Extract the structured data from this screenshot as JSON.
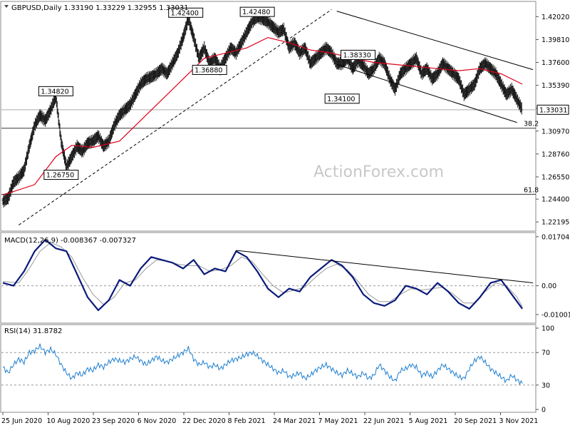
{
  "chart_data": {
    "type": "line",
    "watermark": "ActionForex.com",
    "x_labels": [
      "25 Jun 2020",
      "10 Aug 2020",
      "23 Sep 2020",
      "6 Nov 2020",
      "22 Dec 2020",
      "8 Feb 2021",
      "24 Mar 2021",
      "7 May 2021",
      "22 Jun 2021",
      "5 Aug 2021",
      "20 Sep 2021",
      "3 Nov 2021"
    ],
    "price_panel": {
      "header": "GBPUSD,Daily  1.33190 1.33229 1.32955 1.33031",
      "ylim": [
        1.2145,
        1.4335
      ],
      "y_ticks": [
        "1.42020",
        "1.39810",
        "1.37600",
        "1.35390",
        "1.33180",
        "1.30970",
        "1.28760",
        "1.26550",
        "1.24400",
        "1.22195"
      ],
      "last_price": "1.33031",
      "last_value": 1.33031,
      "fib_levels": [
        {
          "label": "38.2",
          "value": 1.3125
        },
        {
          "label": "61.8",
          "value": 1.2487
        }
      ],
      "annotations": [
        {
          "text": "1.34820",
          "x": 0.1,
          "y": 1.3482
        },
        {
          "text": "1.26750",
          "x": 0.11,
          "y": 1.2675
        },
        {
          "text": "1.42400",
          "x": 0.345,
          "y": 1.424
        },
        {
          "text": "1.36880",
          "x": 0.39,
          "y": 1.3688
        },
        {
          "text": "1.42480",
          "x": 0.48,
          "y": 1.4248
        },
        {
          "text": "1.38330",
          "x": 0.67,
          "y": 1.3833
        },
        {
          "text": "1.34100",
          "x": 0.64,
          "y": 1.341
        }
      ],
      "close_series": [
        [
          0.0,
          1.242
        ],
        [
          0.01,
          1.245
        ],
        [
          0.02,
          1.26
        ],
        [
          0.03,
          1.265
        ],
        [
          0.04,
          1.272
        ],
        [
          0.05,
          1.295
        ],
        [
          0.06,
          1.315
        ],
        [
          0.07,
          1.325
        ],
        [
          0.08,
          1.32
        ],
        [
          0.09,
          1.33
        ],
        [
          0.1,
          1.343
        ],
        [
          0.11,
          1.3
        ],
        [
          0.12,
          1.275
        ],
        [
          0.13,
          1.285
        ],
        [
          0.14,
          1.295
        ],
        [
          0.15,
          1.29
        ],
        [
          0.16,
          1.298
        ],
        [
          0.17,
          1.3
        ],
        [
          0.18,
          1.305
        ],
        [
          0.19,
          1.295
        ],
        [
          0.2,
          1.3
        ],
        [
          0.21,
          1.315
        ],
        [
          0.22,
          1.325
        ],
        [
          0.23,
          1.33
        ],
        [
          0.24,
          1.335
        ],
        [
          0.25,
          1.345
        ],
        [
          0.26,
          1.355
        ],
        [
          0.27,
          1.36
        ],
        [
          0.28,
          1.362
        ],
        [
          0.29,
          1.365
        ],
        [
          0.3,
          1.37
        ],
        [
          0.31,
          1.365
        ],
        [
          0.32,
          1.375
        ],
        [
          0.33,
          1.385
        ],
        [
          0.34,
          1.4
        ],
        [
          0.35,
          1.418
        ],
        [
          0.36,
          1.4
        ],
        [
          0.37,
          1.38
        ],
        [
          0.38,
          1.39
        ],
        [
          0.39,
          1.375
        ],
        [
          0.4,
          1.38
        ],
        [
          0.41,
          1.37
        ],
        [
          0.42,
          1.38
        ],
        [
          0.43,
          1.39
        ],
        [
          0.44,
          1.385
        ],
        [
          0.45,
          1.395
        ],
        [
          0.46,
          1.405
        ],
        [
          0.47,
          1.415
        ],
        [
          0.48,
          1.42
        ],
        [
          0.49,
          1.418
        ],
        [
          0.5,
          1.415
        ],
        [
          0.51,
          1.41
        ],
        [
          0.52,
          1.405
        ],
        [
          0.53,
          1.408
        ],
        [
          0.54,
          1.39
        ],
        [
          0.55,
          1.395
        ],
        [
          0.56,
          1.385
        ],
        [
          0.57,
          1.39
        ],
        [
          0.58,
          1.375
        ],
        [
          0.59,
          1.38
        ],
        [
          0.6,
          1.385
        ],
        [
          0.61,
          1.39
        ],
        [
          0.62,
          1.385
        ],
        [
          0.63,
          1.375
        ],
        [
          0.64,
          1.375
        ],
        [
          0.65,
          1.38
        ],
        [
          0.66,
          1.37
        ],
        [
          0.67,
          1.378
        ],
        [
          0.68,
          1.373
        ],
        [
          0.69,
          1.365
        ],
        [
          0.7,
          1.37
        ],
        [
          0.71,
          1.38
        ],
        [
          0.72,
          1.375
        ],
        [
          0.73,
          1.36
        ],
        [
          0.74,
          1.35
        ],
        [
          0.75,
          1.365
        ],
        [
          0.76,
          1.37
        ],
        [
          0.77,
          1.375
        ],
        [
          0.78,
          1.38
        ],
        [
          0.79,
          1.365
        ],
        [
          0.8,
          1.37
        ],
        [
          0.81,
          1.36
        ],
        [
          0.82,
          1.365
        ],
        [
          0.83,
          1.375
        ],
        [
          0.84,
          1.37
        ],
        [
          0.85,
          1.365
        ],
        [
          0.86,
          1.36
        ],
        [
          0.87,
          1.345
        ],
        [
          0.88,
          1.35
        ],
        [
          0.89,
          1.355
        ],
        [
          0.9,
          1.37
        ],
        [
          0.91,
          1.375
        ],
        [
          0.92,
          1.37
        ],
        [
          0.93,
          1.365
        ],
        [
          0.94,
          1.355
        ],
        [
          0.95,
          1.345
        ],
        [
          0.96,
          1.35
        ],
        [
          0.97,
          1.34
        ],
        [
          0.98,
          1.3303
        ]
      ],
      "ma_series": [
        [
          0.0,
          1.248
        ],
        [
          0.06,
          1.258
        ],
        [
          0.1,
          1.285
        ],
        [
          0.13,
          1.296
        ],
        [
          0.17,
          1.294
        ],
        [
          0.22,
          1.3
        ],
        [
          0.26,
          1.32
        ],
        [
          0.3,
          1.34
        ],
        [
          0.34,
          1.36
        ],
        [
          0.38,
          1.38
        ],
        [
          0.42,
          1.385
        ],
        [
          0.46,
          1.39
        ],
        [
          0.5,
          1.4
        ],
        [
          0.54,
          1.395
        ],
        [
          0.58,
          1.388
        ],
        [
          0.62,
          1.385
        ],
        [
          0.66,
          1.38
        ],
        [
          0.7,
          1.376
        ],
        [
          0.74,
          1.374
        ],
        [
          0.78,
          1.372
        ],
        [
          0.82,
          1.37
        ],
        [
          0.86,
          1.368
        ],
        [
          0.9,
          1.37
        ],
        [
          0.94,
          1.365
        ],
        [
          0.98,
          1.355
        ]
      ],
      "trendlines": [
        {
          "x1": 0.03,
          "y1": 1.219,
          "x2": 0.62,
          "y2": 1.427,
          "style": "dashed"
        },
        {
          "x1": 0.63,
          "y1": 1.4255,
          "x2": 1.0,
          "y2": 1.369,
          "style": "solid"
        },
        {
          "x1": 0.63,
          "y1": 1.374,
          "x2": 0.97,
          "y2": 1.318,
          "style": "solid"
        }
      ]
    },
    "macd_panel": {
      "label": "MACD(12,26,9) -0.008367 -0.007327",
      "ylim": [
        -0.0125,
        0.018
      ],
      "y_ticks": [
        {
          "text": "0.017047",
          "value": 0.017047
        },
        {
          "text": "0.00",
          "value": 0.0
        },
        {
          "text": "-0.010013",
          "value": -0.010013
        }
      ],
      "zero_line": 0.0,
      "macd_series": [
        [
          0.0,
          0.001
        ],
        [
          0.02,
          0.0
        ],
        [
          0.04,
          0.005
        ],
        [
          0.06,
          0.012
        ],
        [
          0.08,
          0.016
        ],
        [
          0.1,
          0.013
        ],
        [
          0.12,
          0.012
        ],
        [
          0.14,
          0.004
        ],
        [
          0.16,
          -0.004
        ],
        [
          0.18,
          -0.0085
        ],
        [
          0.2,
          -0.005
        ],
        [
          0.22,
          0.002
        ],
        [
          0.24,
          0.0
        ],
        [
          0.26,
          0.006
        ],
        [
          0.28,
          0.01
        ],
        [
          0.3,
          0.009
        ],
        [
          0.32,
          0.008
        ],
        [
          0.34,
          0.006
        ],
        [
          0.36,
          0.009
        ],
        [
          0.38,
          0.004
        ],
        [
          0.4,
          0.006
        ],
        [
          0.42,
          0.005
        ],
        [
          0.44,
          0.012
        ],
        [
          0.46,
          0.01
        ],
        [
          0.48,
          0.005
        ],
        [
          0.5,
          -0.001
        ],
        [
          0.52,
          -0.004
        ],
        [
          0.54,
          -0.001
        ],
        [
          0.56,
          -0.002
        ],
        [
          0.58,
          0.003
        ],
        [
          0.6,
          0.006
        ],
        [
          0.62,
          0.009
        ],
        [
          0.64,
          0.007
        ],
        [
          0.66,
          0.003
        ],
        [
          0.68,
          -0.003
        ],
        [
          0.7,
          -0.006
        ],
        [
          0.72,
          -0.007
        ],
        [
          0.74,
          -0.005
        ],
        [
          0.76,
          0.0
        ],
        [
          0.78,
          -0.001
        ],
        [
          0.8,
          -0.003
        ],
        [
          0.82,
          0.001
        ],
        [
          0.84,
          -0.002
        ],
        [
          0.86,
          -0.006
        ],
        [
          0.88,
          -0.008
        ],
        [
          0.9,
          -0.004
        ],
        [
          0.92,
          0.001
        ],
        [
          0.94,
          0.002
        ],
        [
          0.96,
          -0.003
        ],
        [
          0.98,
          -0.008
        ]
      ],
      "signal_series": [
        [
          0.0,
          0.0015
        ],
        [
          0.03,
          0.001
        ],
        [
          0.05,
          0.006
        ],
        [
          0.07,
          0.012
        ],
        [
          0.09,
          0.015
        ],
        [
          0.11,
          0.0135
        ],
        [
          0.13,
          0.01
        ],
        [
          0.15,
          0.003
        ],
        [
          0.17,
          -0.003
        ],
        [
          0.19,
          -0.0065
        ],
        [
          0.21,
          -0.004
        ],
        [
          0.23,
          0.001
        ],
        [
          0.25,
          0.002
        ],
        [
          0.27,
          0.006
        ],
        [
          0.29,
          0.009
        ],
        [
          0.31,
          0.0085
        ],
        [
          0.33,
          0.0075
        ],
        [
          0.35,
          0.007
        ],
        [
          0.37,
          0.007
        ],
        [
          0.39,
          0.005
        ],
        [
          0.41,
          0.0055
        ],
        [
          0.43,
          0.007
        ],
        [
          0.45,
          0.01
        ],
        [
          0.47,
          0.0085
        ],
        [
          0.49,
          0.004
        ],
        [
          0.51,
          0.0
        ],
        [
          0.53,
          -0.0025
        ],
        [
          0.55,
          -0.0015
        ],
        [
          0.57,
          -0.0005
        ],
        [
          0.59,
          0.003
        ],
        [
          0.61,
          0.006
        ],
        [
          0.63,
          0.0075
        ],
        [
          0.65,
          0.0055
        ],
        [
          0.67,
          0.0015
        ],
        [
          0.69,
          -0.003
        ],
        [
          0.71,
          -0.0055
        ],
        [
          0.73,
          -0.0055
        ],
        [
          0.75,
          -0.003
        ],
        [
          0.77,
          -0.001
        ],
        [
          0.79,
          -0.0015
        ],
        [
          0.81,
          -0.001
        ],
        [
          0.83,
          -0.0005
        ],
        [
          0.85,
          -0.003
        ],
        [
          0.87,
          -0.006
        ],
        [
          0.89,
          -0.006
        ],
        [
          0.91,
          -0.002
        ],
        [
          0.93,
          0.001
        ],
        [
          0.95,
          0.0
        ],
        [
          0.97,
          -0.004
        ],
        [
          0.98,
          -0.0073
        ]
      ],
      "trendline": {
        "x1": 0.44,
        "y1": 0.0123,
        "x2": 1.0,
        "y2": 0.001
      }
    },
    "rsi_panel": {
      "label": "RSI(14) 31.8782",
      "ylim": [
        0,
        100
      ],
      "y_ticks": [
        {
          "text": "100",
          "value": 100
        },
        {
          "text": "70",
          "value": 70
        },
        {
          "text": "30",
          "value": 30
        },
        {
          "text": "0",
          "value": 0
        }
      ],
      "levels": [
        70,
        30
      ],
      "rsi_series": [
        [
          0.0,
          52
        ],
        [
          0.01,
          45
        ],
        [
          0.02,
          55
        ],
        [
          0.03,
          62
        ],
        [
          0.04,
          58
        ],
        [
          0.05,
          70
        ],
        [
          0.06,
          72
        ],
        [
          0.07,
          78
        ],
        [
          0.08,
          70
        ],
        [
          0.09,
          74
        ],
        [
          0.1,
          68
        ],
        [
          0.11,
          55
        ],
        [
          0.12,
          45
        ],
        [
          0.13,
          38
        ],
        [
          0.14,
          45
        ],
        [
          0.15,
          42
        ],
        [
          0.16,
          50
        ],
        [
          0.17,
          48
        ],
        [
          0.18,
          55
        ],
        [
          0.19,
          52
        ],
        [
          0.2,
          58
        ],
        [
          0.21,
          62
        ],
        [
          0.22,
          60
        ],
        [
          0.23,
          58
        ],
        [
          0.24,
          62
        ],
        [
          0.25,
          65
        ],
        [
          0.26,
          60
        ],
        [
          0.27,
          55
        ],
        [
          0.28,
          60
        ],
        [
          0.29,
          65
        ],
        [
          0.3,
          60
        ],
        [
          0.31,
          58
        ],
        [
          0.32,
          62
        ],
        [
          0.33,
          66
        ],
        [
          0.34,
          70
        ],
        [
          0.35,
          75
        ],
        [
          0.36,
          62
        ],
        [
          0.37,
          55
        ],
        [
          0.38,
          58
        ],
        [
          0.39,
          52
        ],
        [
          0.4,
          55
        ],
        [
          0.41,
          50
        ],
        [
          0.42,
          55
        ],
        [
          0.43,
          60
        ],
        [
          0.44,
          62
        ],
        [
          0.45,
          64
        ],
        [
          0.46,
          68
        ],
        [
          0.47,
          70
        ],
        [
          0.48,
          66
        ],
        [
          0.49,
          60
        ],
        [
          0.5,
          55
        ],
        [
          0.51,
          50
        ],
        [
          0.52,
          45
        ],
        [
          0.53,
          48
        ],
        [
          0.54,
          40
        ],
        [
          0.55,
          42
        ],
        [
          0.56,
          45
        ],
        [
          0.57,
          38
        ],
        [
          0.58,
          42
        ],
        [
          0.59,
          48
        ],
        [
          0.6,
          52
        ],
        [
          0.61,
          55
        ],
        [
          0.62,
          50
        ],
        [
          0.63,
          45
        ],
        [
          0.64,
          42
        ],
        [
          0.65,
          48
        ],
        [
          0.66,
          44
        ],
        [
          0.67,
          40
        ],
        [
          0.68,
          45
        ],
        [
          0.69,
          38
        ],
        [
          0.7,
          42
        ],
        [
          0.71,
          55
        ],
        [
          0.72,
          48
        ],
        [
          0.73,
          40
        ],
        [
          0.74,
          35
        ],
        [
          0.75,
          48
        ],
        [
          0.76,
          50
        ],
        [
          0.77,
          55
        ],
        [
          0.78,
          52
        ],
        [
          0.79,
          42
        ],
        [
          0.8,
          45
        ],
        [
          0.81,
          40
        ],
        [
          0.82,
          48
        ],
        [
          0.83,
          55
        ],
        [
          0.84,
          50
        ],
        [
          0.85,
          45
        ],
        [
          0.86,
          40
        ],
        [
          0.87,
          38
        ],
        [
          0.88,
          50
        ],
        [
          0.89,
          60
        ],
        [
          0.9,
          65
        ],
        [
          0.91,
          58
        ],
        [
          0.92,
          50
        ],
        [
          0.93,
          45
        ],
        [
          0.94,
          40
        ],
        [
          0.95,
          35
        ],
        [
          0.96,
          42
        ],
        [
          0.97,
          36
        ],
        [
          0.98,
          32
        ]
      ]
    }
  }
}
